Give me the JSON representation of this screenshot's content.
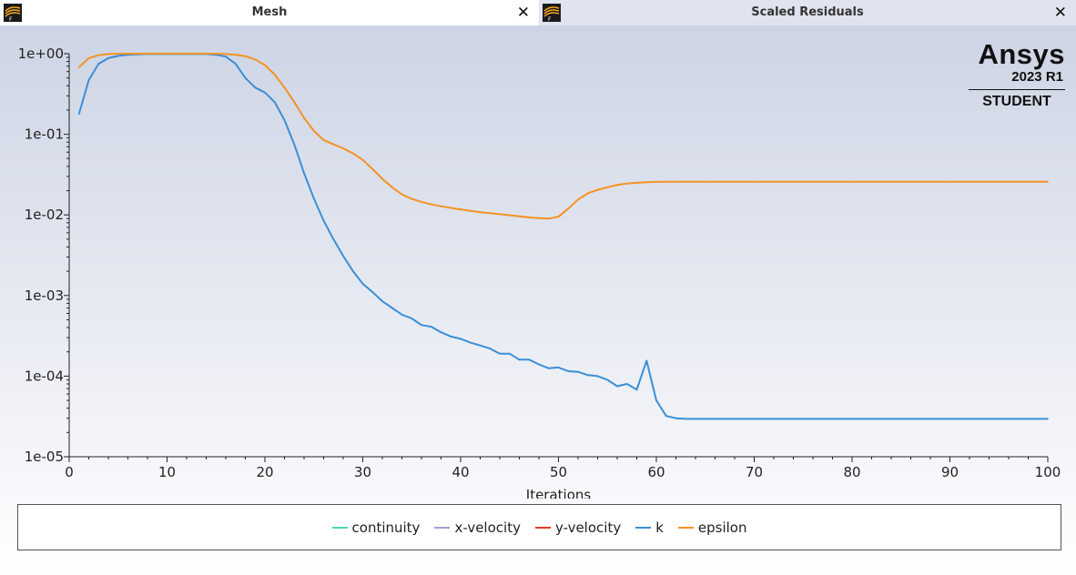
{
  "tabs": [
    {
      "title": "Mesh",
      "close": "✕"
    },
    {
      "title": "Scaled Residuals",
      "close": "✕"
    }
  ],
  "logo": {
    "name": "Ansys",
    "version": "2023 R1",
    "edition": "STUDENT"
  },
  "colors": {
    "continuity": "#4fd6b4",
    "x_velocity": "#a99bd8",
    "y_velocity": "#e8391f",
    "k": "#3b8fd6",
    "epsilon": "#f59224"
  },
  "chart_data": {
    "type": "line",
    "xlabel": "Iterations",
    "ylabel": "",
    "xlim": [
      0,
      100
    ],
    "ylim": [
      1e-05,
      1
    ],
    "yscale": "log",
    "xticks": [
      0,
      10,
      20,
      30,
      40,
      50,
      60,
      70,
      80,
      90,
      100
    ],
    "yticks": [
      1,
      0.1,
      0.01,
      0.001,
      0.0001,
      1e-05
    ],
    "ytick_labels": [
      "1e+00",
      "1e-01",
      "1e-02",
      "1e-03",
      "1e-04",
      "1e-05"
    ],
    "grid": false,
    "legend_placement": "bottom",
    "legend": [
      "continuity",
      "x-velocity",
      "y-velocity",
      "k",
      "epsilon"
    ],
    "series": [
      {
        "name": "continuity",
        "color_key": "continuity",
        "x": [],
        "y": []
      },
      {
        "name": "x-velocity",
        "color_key": "x_velocity",
        "x": [],
        "y": []
      },
      {
        "name": "y-velocity",
        "color_key": "y_velocity",
        "x": [],
        "y": []
      },
      {
        "name": "k",
        "color_key": "k",
        "x": [
          1,
          2,
          3,
          4,
          5,
          6,
          7,
          8,
          9,
          10,
          11,
          12,
          13,
          14,
          15,
          16,
          17,
          18,
          19,
          20,
          21,
          22,
          23,
          24,
          25,
          26,
          27,
          28,
          29,
          30,
          31,
          32,
          33,
          34,
          35,
          36,
          37,
          38,
          39,
          40,
          41,
          42,
          43,
          44,
          45,
          46,
          47,
          48,
          49,
          50,
          51,
          52,
          53,
          54,
          55,
          56,
          57,
          58,
          59,
          60,
          61,
          62,
          63,
          64,
          65,
          70,
          75,
          80,
          85,
          90,
          95,
          100
        ],
        "y": [
          0.18,
          0.47,
          0.75,
          0.88,
          0.94,
          0.97,
          0.98,
          0.99,
          0.99,
          0.99,
          0.99,
          0.99,
          0.99,
          0.99,
          0.97,
          0.92,
          0.75,
          0.5,
          0.38,
          0.33,
          0.25,
          0.15,
          0.075,
          0.033,
          0.016,
          0.0085,
          0.005,
          0.0031,
          0.002,
          0.0014,
          0.0011,
          0.00085,
          0.0007,
          0.00058,
          0.00052,
          0.00043,
          0.00041,
          0.00035,
          0.00031,
          0.00029,
          0.00026,
          0.00024,
          0.00022,
          0.00019,
          0.00019,
          0.00016,
          0.00016,
          0.00014,
          0.000125,
          0.000128,
          0.000115,
          0.000113,
          0.000103,
          0.0001,
          9e-05,
          7.5e-05,
          8e-05,
          6.8e-05,
          0.000155,
          5e-05,
          3.2e-05,
          3e-05,
          2.95e-05,
          2.95e-05,
          2.95e-05,
          2.95e-05,
          2.95e-05,
          2.95e-05,
          2.95e-05,
          2.95e-05,
          2.95e-05,
          2.95e-05
        ]
      },
      {
        "name": "epsilon",
        "color_key": "epsilon",
        "x": [
          1,
          2,
          3,
          4,
          5,
          6,
          7,
          8,
          9,
          10,
          11,
          12,
          13,
          14,
          15,
          16,
          17,
          18,
          19,
          20,
          21,
          22,
          23,
          24,
          25,
          26,
          27,
          28,
          29,
          30,
          31,
          32,
          33,
          34,
          35,
          36,
          37,
          38,
          39,
          40,
          41,
          42,
          43,
          44,
          45,
          46,
          47,
          48,
          49,
          50,
          51,
          52,
          53,
          54,
          55,
          56,
          57,
          58,
          59,
          60,
          61,
          62,
          65,
          70,
          80,
          90,
          100
        ],
        "y": [
          0.68,
          0.88,
          0.96,
          0.99,
          1.0,
          1.0,
          1.0,
          1.0,
          1.0,
          1.0,
          1.0,
          1.0,
          1.0,
          1.0,
          1.0,
          0.99,
          0.97,
          0.93,
          0.85,
          0.72,
          0.55,
          0.38,
          0.25,
          0.16,
          0.11,
          0.085,
          0.075,
          0.067,
          0.058,
          0.048,
          0.037,
          0.028,
          0.022,
          0.018,
          0.0158,
          0.0145,
          0.0135,
          0.0128,
          0.0122,
          0.0117,
          0.0112,
          0.0108,
          0.0105,
          0.0102,
          0.0099,
          0.0096,
          0.0093,
          0.0091,
          0.009,
          0.0095,
          0.012,
          0.0155,
          0.0185,
          0.0205,
          0.022,
          0.0235,
          0.0245,
          0.025,
          0.0255,
          0.0257,
          0.0258,
          0.0258,
          0.0258,
          0.0258,
          0.0258,
          0.0258,
          0.0258
        ]
      }
    ]
  }
}
